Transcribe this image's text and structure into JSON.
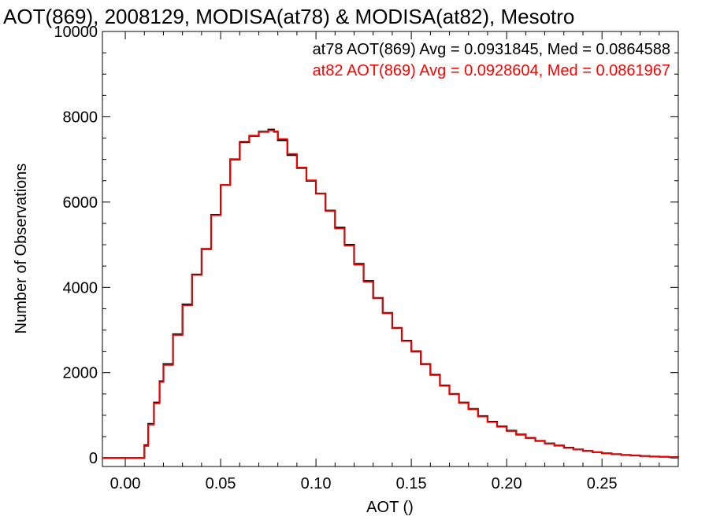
{
  "chart_data": {
    "type": "line",
    "step": true,
    "title": "AOT(869), 2008129, MODISA(at78) & MODISA(at82), Mesotro",
    "xlabel": "AOT ()",
    "ylabel": "Number of Observations",
    "xlim": [
      -0.012,
      0.29
    ],
    "ylim": [
      -200,
      10000
    ],
    "xticks": [
      "0.00",
      "0.05",
      "0.10",
      "0.15",
      "0.20",
      "0.25"
    ],
    "xtick_values": [
      0.0,
      0.05,
      0.1,
      0.15,
      0.2,
      0.25
    ],
    "yticks": [
      "0",
      "2000",
      "4000",
      "6000",
      "8000",
      "10000"
    ],
    "ytick_values": [
      0,
      2000,
      4000,
      6000,
      8000,
      10000
    ],
    "grid": false,
    "annotations": [
      {
        "text": "at78 AOT(869) Avg = 0.0931845, Med = 0.0864588",
        "color": "#000000"
      },
      {
        "text": "at82 AOT(869) Avg = 0.0928604, Med = 0.0861967",
        "color": "#ff0000"
      }
    ],
    "x": [
      -0.012,
      0.0,
      0.009,
      0.01,
      0.012,
      0.015,
      0.018,
      0.02,
      0.025,
      0.03,
      0.035,
      0.04,
      0.045,
      0.05,
      0.055,
      0.06,
      0.065,
      0.07,
      0.075,
      0.078,
      0.08,
      0.085,
      0.09,
      0.095,
      0.1,
      0.105,
      0.11,
      0.115,
      0.12,
      0.125,
      0.13,
      0.135,
      0.14,
      0.145,
      0.15,
      0.155,
      0.16,
      0.165,
      0.17,
      0.175,
      0.18,
      0.185,
      0.19,
      0.195,
      0.2,
      0.205,
      0.21,
      0.215,
      0.22,
      0.225,
      0.23,
      0.235,
      0.24,
      0.245,
      0.25,
      0.255,
      0.26,
      0.265,
      0.27,
      0.275,
      0.28,
      0.285,
      0.29
    ],
    "series": [
      {
        "color": "#000000",
        "values": [
          0,
          0,
          0,
          300,
          800,
          1300,
          1800,
          2200,
          2900,
          3600,
          4300,
          4900,
          5700,
          6400,
          7000,
          7400,
          7550,
          7650,
          7700,
          7650,
          7450,
          7100,
          6800,
          6500,
          6200,
          5800,
          5400,
          5000,
          4550,
          4150,
          3750,
          3400,
          3050,
          2750,
          2500,
          2200,
          1950,
          1700,
          1500,
          1300,
          1150,
          980,
          850,
          740,
          640,
          550,
          470,
          400,
          340,
          290,
          240,
          200,
          165,
          135,
          110,
          90,
          72,
          58,
          45,
          35,
          27,
          20,
          14
        ]
      },
      {
        "color": "#ff0000",
        "values": [
          0,
          0,
          0,
          280,
          780,
          1280,
          1780,
          2180,
          2880,
          3580,
          4290,
          4890,
          5690,
          6400,
          7010,
          7420,
          7560,
          7640,
          7680,
          7660,
          7480,
          7130,
          6810,
          6510,
          6200,
          5790,
          5380,
          4980,
          4530,
          4130,
          3740,
          3390,
          3040,
          2740,
          2490,
          2190,
          1940,
          1690,
          1490,
          1290,
          1140,
          970,
          840,
          730,
          630,
          540,
          460,
          395,
          335,
          285,
          236,
          196,
          162,
          132,
          108,
          88,
          70,
          56,
          44,
          34,
          26,
          19,
          13
        ]
      }
    ]
  }
}
